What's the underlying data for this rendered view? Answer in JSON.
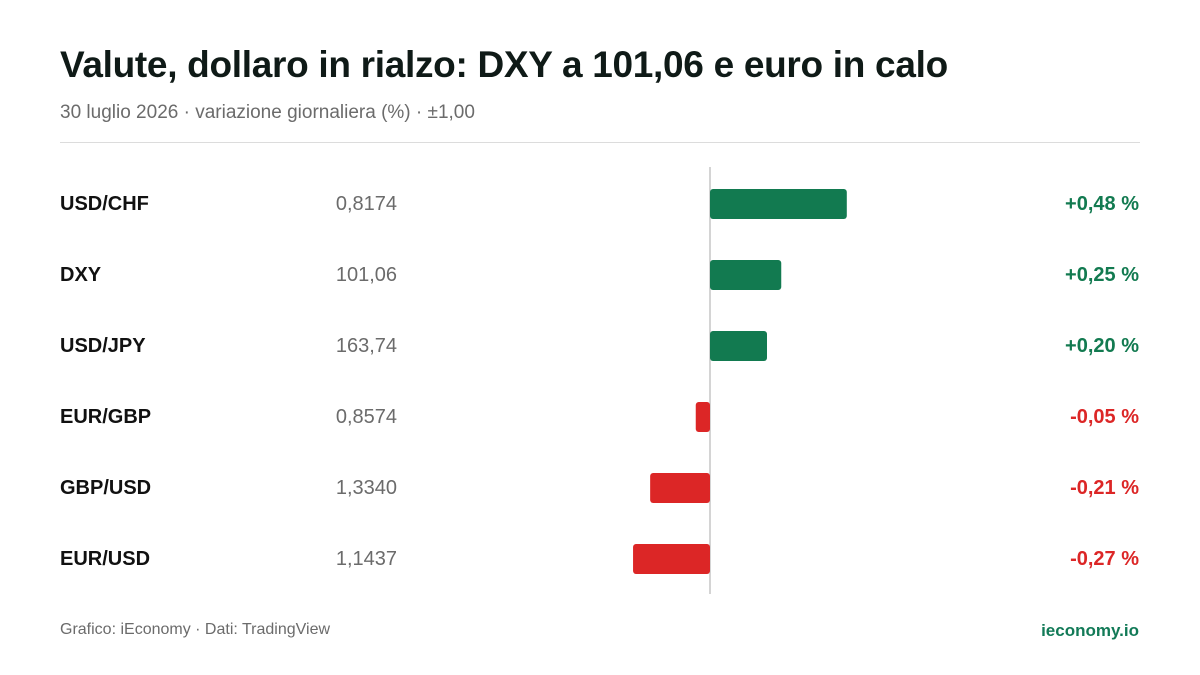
{
  "header": {
    "title": "Valute, dollaro in rialzo: DXY a 101,06 e euro in calo",
    "subtitle": "30 luglio 2026 · variazione giornaliera (%) · ±1,00"
  },
  "footer": {
    "source": "Grafico: iEconomy · Dati: TradingView",
    "brand": "ieconomy.io"
  },
  "colors": {
    "positive": "#127a50",
    "negative": "#dc2626",
    "axis": "#d4d4d4",
    "label": "#111111",
    "price": "#6b6b6b"
  },
  "chart_data": {
    "type": "bar",
    "orientation": "horizontal",
    "categories": [
      "USD/CHF",
      "DXY",
      "USD/JPY",
      "EUR/GBP",
      "GBP/USD",
      "EUR/USD"
    ],
    "prices": [
      "0,8174",
      "101,06",
      "163,74",
      "0,8574",
      "1,3340",
      "1,1437"
    ],
    "values": [
      0.48,
      0.25,
      0.2,
      -0.05,
      -0.21,
      -0.27
    ],
    "value_labels": [
      "+0,48 %",
      "+0,25 %",
      "+0,20 %",
      "-0,05 %",
      "-0,21 %",
      "-0,27 %"
    ],
    "xlim": [
      -1,
      1
    ],
    "grid": false
  }
}
